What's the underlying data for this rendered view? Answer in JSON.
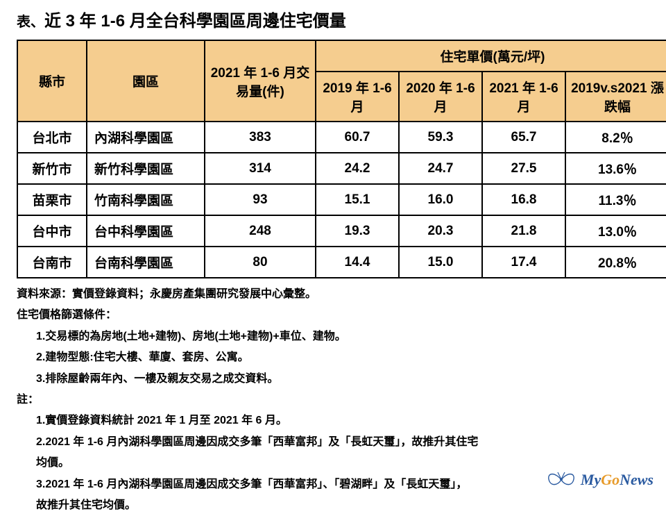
{
  "title_prefix": "表、",
  "title_main": "近 3 年 1-6 月全台科學園區周邊住宅價量",
  "table": {
    "header_bg": "#f5cd8f",
    "border_color": "#000000",
    "columns": {
      "city": "縣市",
      "park": "園區",
      "volume": "2021 年 1-6 月交易量(件)",
      "price_group": "住宅單價(萬元/坪)",
      "p2019": "2019 年\n1-6 月",
      "p2020": "2020 年\n1-6 月",
      "p2021": "2021 年\n1-6 月",
      "pct": "2019v.s2021\n漲跌幅"
    },
    "rows": [
      {
        "city": "台北市",
        "park": "內湖科學園區",
        "volume": "383",
        "p2019": "60.7",
        "p2020": "59.3",
        "p2021": "65.7",
        "pct": "8.2％"
      },
      {
        "city": "新竹市",
        "park": "新竹科學園區",
        "volume": "314",
        "p2019": "24.2",
        "p2020": "24.7",
        "p2021": "27.5",
        "pct": "13.6％"
      },
      {
        "city": "苗栗市",
        "park": "竹南科學園區",
        "volume": "93",
        "p2019": "15.1",
        "p2020": "16.0",
        "p2021": "16.8",
        "pct": "11.3％"
      },
      {
        "city": "台中市",
        "park": "台中科學園區",
        "volume": "248",
        "p2019": "19.3",
        "p2020": "20.3",
        "p2021": "21.8",
        "pct": "13.0％"
      },
      {
        "city": "台南市",
        "park": "台南科學園區",
        "volume": "80",
        "p2019": "14.4",
        "p2020": "15.0",
        "p2021": "17.4",
        "pct": "20.8％"
      }
    ]
  },
  "notes": [
    {
      "text": "資料來源：實價登錄資料；永慶房產集團研究發展中心彙整。",
      "indent": false
    },
    {
      "text": "住宅價格篩選條件：",
      "indent": false
    },
    {
      "text": "1.交易標的為房地(土地+建物)、房地(土地+建物)+車位、建物。",
      "indent": true
    },
    {
      "text": "2.建物型態:住宅大樓、華廈、套房、公寓。",
      "indent": true
    },
    {
      "text": "3.排除屋齡兩年內、一樓及親友交易之成交資料。",
      "indent": true
    },
    {
      "text": "註：",
      "indent": false
    },
    {
      "text": "1.實價登錄資料統計 2021 年 1 月至 2021 年 6 月。",
      "indent": true
    },
    {
      "text": "2.2021 年 1-6 月內湖科學園區周邊因成交多筆「西華富邦」及「長虹天璽」，故推升其住宅",
      "indent": true
    },
    {
      "text": "均價。",
      "indent": true
    },
    {
      "text": "3.2021 年 1-6 月內湖科學園區周邊因成交多筆「西華富邦」、「碧湖畔」及「長虹天璽」，",
      "indent": true
    },
    {
      "text": "故推升其住宅均價。",
      "indent": true
    }
  ],
  "logo": {
    "my": "My",
    "go": "Go",
    "news": "News",
    "brand_blue": "#2a5aa0",
    "brand_orange": "#e79b2b"
  }
}
